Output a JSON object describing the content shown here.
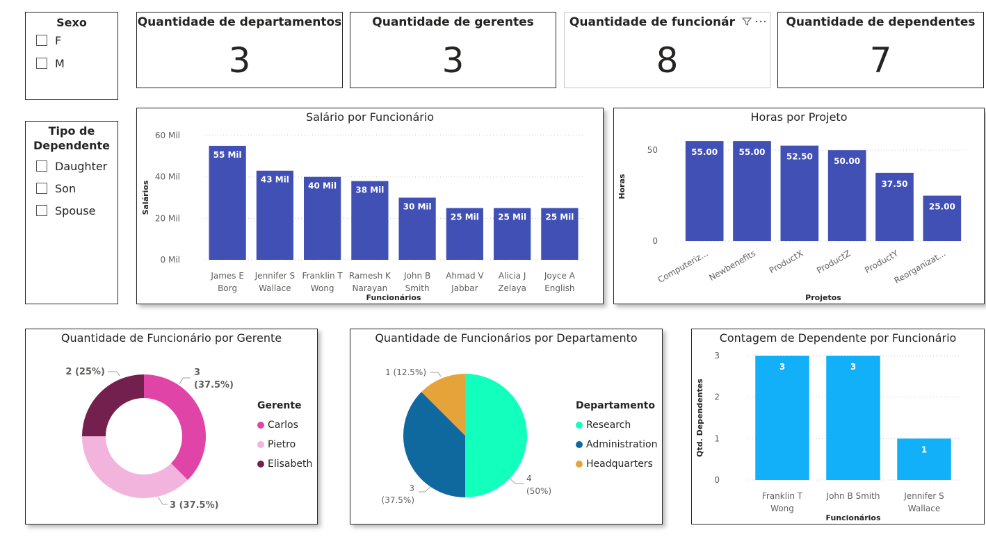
{
  "slicer_sexo": {
    "title": "Sexo",
    "options": [
      "F",
      "M"
    ]
  },
  "slicer_dependente": {
    "title_line1": "Tipo de",
    "title_line2": "Dependente",
    "options": [
      "Daughter",
      "Son",
      "Spouse"
    ]
  },
  "kpis": [
    {
      "title": "Quantidade de departamentos",
      "value": "3"
    },
    {
      "title": "Quantidade de gerentes",
      "value": "3"
    },
    {
      "title": "Quantidade de funcionár",
      "value": "8",
      "header_icons": [
        "filter-icon",
        "more-options-icon"
      ]
    },
    {
      "title": "Quantidade de dependentes",
      "value": "7"
    }
  ],
  "colors": {
    "bar_blue": "#4050B5",
    "bar_cyan": "#12B0F8",
    "carlos": "#E044A7",
    "pietro": "#F2B4DC",
    "elisabeth": "#74204E",
    "research": "#12FFBE",
    "administration": "#10699E",
    "headquarters": "#E6A339"
  },
  "chart_data": [
    {
      "type": "bar",
      "title": "Salário por Funcionário",
      "xlabel": "Funcionários",
      "ylabel": "Salários",
      "categories": [
        [
          "James E",
          "Borg"
        ],
        [
          "Jennifer S",
          "Wallace"
        ],
        [
          "Franklin T",
          "Wong"
        ],
        [
          "Ramesh K",
          "Narayan"
        ],
        [
          "John B",
          "Smith"
        ],
        [
          "Ahmad V",
          "Jabbar"
        ],
        [
          "Alicia J",
          "Zelaya"
        ],
        [
          "Joyce A",
          "English"
        ]
      ],
      "values": [
        55000,
        43000,
        40000,
        38000,
        30000,
        25000,
        25000,
        25000
      ],
      "data_labels": [
        "55 Mil",
        "43 Mil",
        "40 Mil",
        "38 Mil",
        "30 Mil",
        "25 Mil",
        "25 Mil",
        "25 Mil"
      ],
      "yticks": [
        0,
        20000,
        40000,
        60000
      ],
      "ytick_labels": [
        "0 Mil",
        "20 Mil",
        "40 Mil",
        "60 Mil"
      ],
      "ylim": [
        0,
        60000
      ],
      "grid": true
    },
    {
      "type": "bar",
      "title": "Horas por Projeto",
      "xlabel": "Projetos",
      "ylabel": "Horas",
      "categories": [
        "Computeriz...",
        "Newbenefits",
        "ProductX",
        "ProductZ",
        "ProductY",
        "Reorganizat..."
      ],
      "values": [
        55,
        55,
        52.5,
        50,
        37.5,
        25
      ],
      "data_labels": [
        "55.00",
        "55.00",
        "52.50",
        "50.00",
        "37.50",
        "25.00"
      ],
      "yticks": [
        0,
        50
      ],
      "ytick_labels": [
        "0",
        "50"
      ],
      "ylim": [
        0,
        60
      ],
      "grid": true
    },
    {
      "type": "pie",
      "variant": "donut",
      "title": "Quantidade de Funcionário por Gerente",
      "legend_title": "Gerente",
      "legend_position": "right",
      "slices": [
        {
          "name": "Carlos",
          "value": 3,
          "label": "3 (37.5%)",
          "label_line1": "3",
          "label_line2": "(37.5%)"
        },
        {
          "name": "Pietro",
          "value": 3,
          "label": "3 (37.5%)"
        },
        {
          "name": "Elisabeth",
          "value": 2,
          "label": "2 (25%)"
        }
      ]
    },
    {
      "type": "pie",
      "title": "Quantidade de Funcionários por Departamento",
      "legend_title": "Departamento",
      "legend_position": "right",
      "slices": [
        {
          "name": "Research",
          "value": 4,
          "label_line1": "4",
          "label_line2": "(50%)"
        },
        {
          "name": "Administration",
          "value": 3,
          "label_line1": "3",
          "label_line2": "(37.5%)"
        },
        {
          "name": "Headquarters",
          "value": 1,
          "label": "1 (12.5%)"
        }
      ]
    },
    {
      "type": "bar",
      "title": "Contagem de Dependente por Funcionário",
      "xlabel": "Funcionários",
      "ylabel": "Qtd. Dependentes",
      "categories": [
        [
          "Franklin T",
          "Wong"
        ],
        [
          "John B Smith"
        ],
        [
          "Jennifer S",
          "Wallace"
        ]
      ],
      "values": [
        3,
        3,
        1
      ],
      "data_labels": [
        "3",
        "3",
        "1"
      ],
      "yticks": [
        0,
        1,
        2,
        3
      ],
      "ytick_labels": [
        "0",
        "1",
        "2",
        "3"
      ],
      "ylim": [
        0,
        3
      ],
      "grid": true
    }
  ]
}
